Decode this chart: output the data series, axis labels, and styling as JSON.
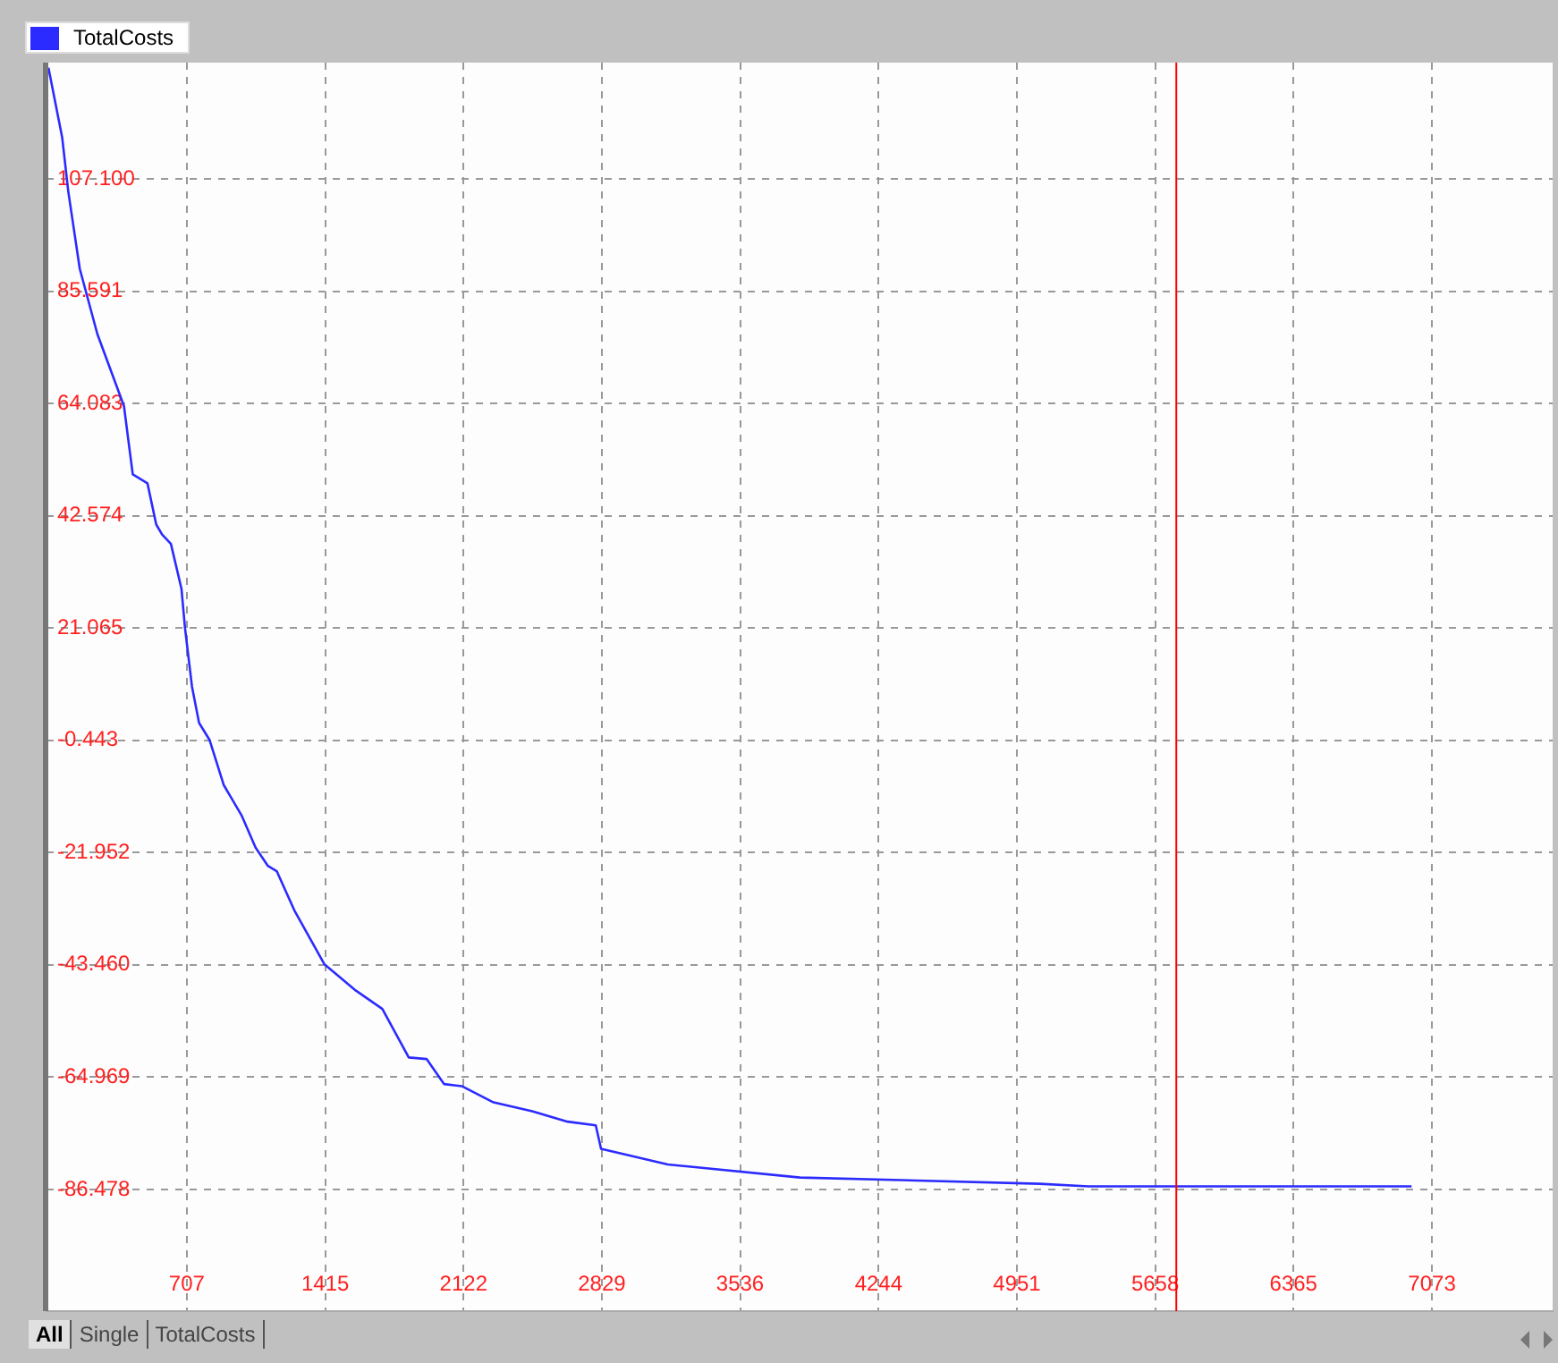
{
  "chart_data": {
    "type": "line",
    "legend": "top left",
    "grid": true,
    "marker": "none",
    "line_style": "solid",
    "xlim": [
      -10,
      7690
    ],
    "ylim": [
      -109.8,
      129.4
    ],
    "xticks": [
      707,
      1415,
      2122,
      2829,
      3536,
      4244,
      4951,
      5658,
      6365,
      7073
    ],
    "yticks": [
      {
        "value": 107.1,
        "label": "107.100"
      },
      {
        "value": 85.591,
        "label": "85.591"
      },
      {
        "value": 64.083,
        "label": "64.083"
      },
      {
        "value": 42.574,
        "label": "42.574"
      },
      {
        "value": 21.065,
        "label": "21.065"
      },
      {
        "value": -0.443,
        "label": "-0.443"
      },
      {
        "value": -21.952,
        "label": "-21.952"
      },
      {
        "value": -43.46,
        "label": "-43.460"
      },
      {
        "value": -64.969,
        "label": "-64.969"
      },
      {
        "value": -86.478,
        "label": "-86.478"
      }
    ],
    "ref_lines": [
      {
        "axis": "x",
        "value": 5766,
        "color": "#ff0000"
      }
    ],
    "annotations": [
      "All",
      "Single",
      "TotalCosts"
    ],
    "series": [
      {
        "name": "TotalCosts",
        "color": "#2b2bff",
        "x": [
          0,
          70,
          101,
          160,
          250,
          386,
          431,
          506,
          551,
          581,
          626,
          680,
          698,
          734,
          770,
          824,
          896,
          987,
          1059,
          1122,
          1167,
          1257,
          1410,
          1572,
          1707,
          1842,
          1933,
          2023,
          2113,
          2275,
          2473,
          2654,
          2798,
          2825,
          3166,
          3842,
          5068,
          5317,
          6969
        ],
        "values": [
          128.4,
          115.1,
          104.8,
          89.9,
          77.4,
          63.6,
          50.5,
          48.8,
          40.9,
          39.0,
          37.2,
          28.6,
          21.1,
          9.8,
          2.9,
          -0.4,
          -9.0,
          -14.8,
          -21.0,
          -24.5,
          -25.5,
          -33.0,
          -43.3,
          -48.4,
          -51.9,
          -61.2,
          -61.5,
          -66.3,
          -66.7,
          -69.8,
          -71.5,
          -73.5,
          -74.2,
          -78.7,
          -81.7,
          -84.2,
          -85.4,
          -85.9,
          -85.9
        ]
      }
    ]
  }
}
